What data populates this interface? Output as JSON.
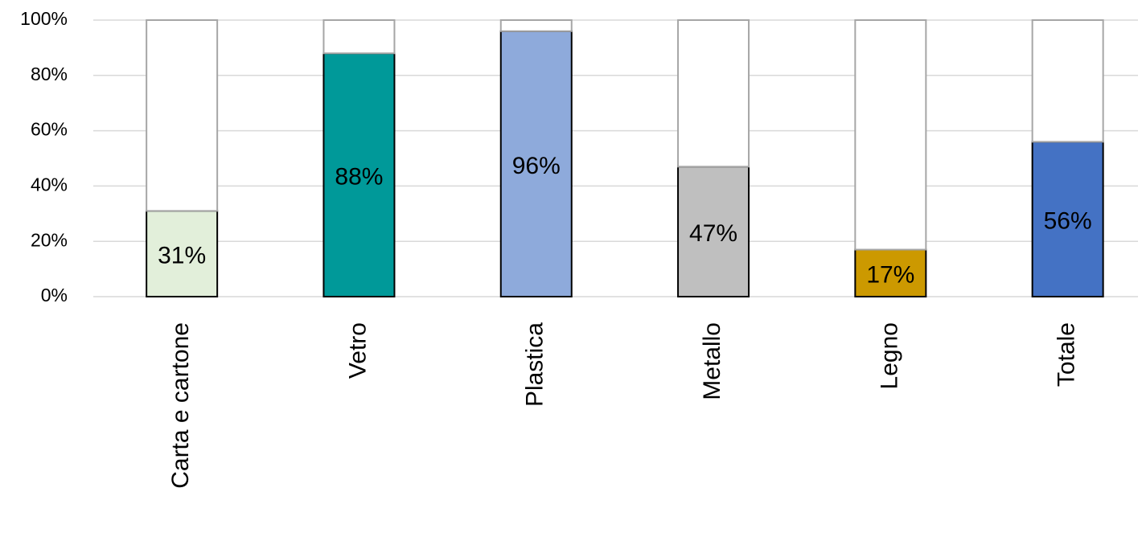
{
  "chart_data": {
    "type": "stacked-bar",
    "categories": [
      "Carta e cartone",
      "Vetro",
      "Plastica",
      "Metallo",
      "Legno",
      "Totale"
    ],
    "series": [
      {
        "values": [
          31,
          88,
          96,
          47,
          17,
          56
        ],
        "value_labels": [
          "31%",
          "88%",
          "96%",
          "47%",
          "17%",
          "56%"
        ],
        "colors": [
          "#e2efda",
          "#009999",
          "#8eaadb",
          "#bfbfbf",
          "#cc9900",
          "#4472c4"
        ],
        "stroke": "#000000"
      },
      {
        "values": [
          69,
          12,
          4,
          53,
          83,
          44
        ],
        "color": "#ffffff",
        "stroke": "#a6a6a6"
      }
    ],
    "ylim": [
      0,
      100
    ],
    "yticks": [
      {
        "value": 0,
        "label": "0%"
      },
      {
        "value": 20,
        "label": "20%"
      },
      {
        "value": 40,
        "label": "40%"
      },
      {
        "value": 60,
        "label": "60%"
      },
      {
        "value": 80,
        "label": "80%"
      },
      {
        "value": 100,
        "label": "100%"
      }
    ],
    "grid": true
  }
}
